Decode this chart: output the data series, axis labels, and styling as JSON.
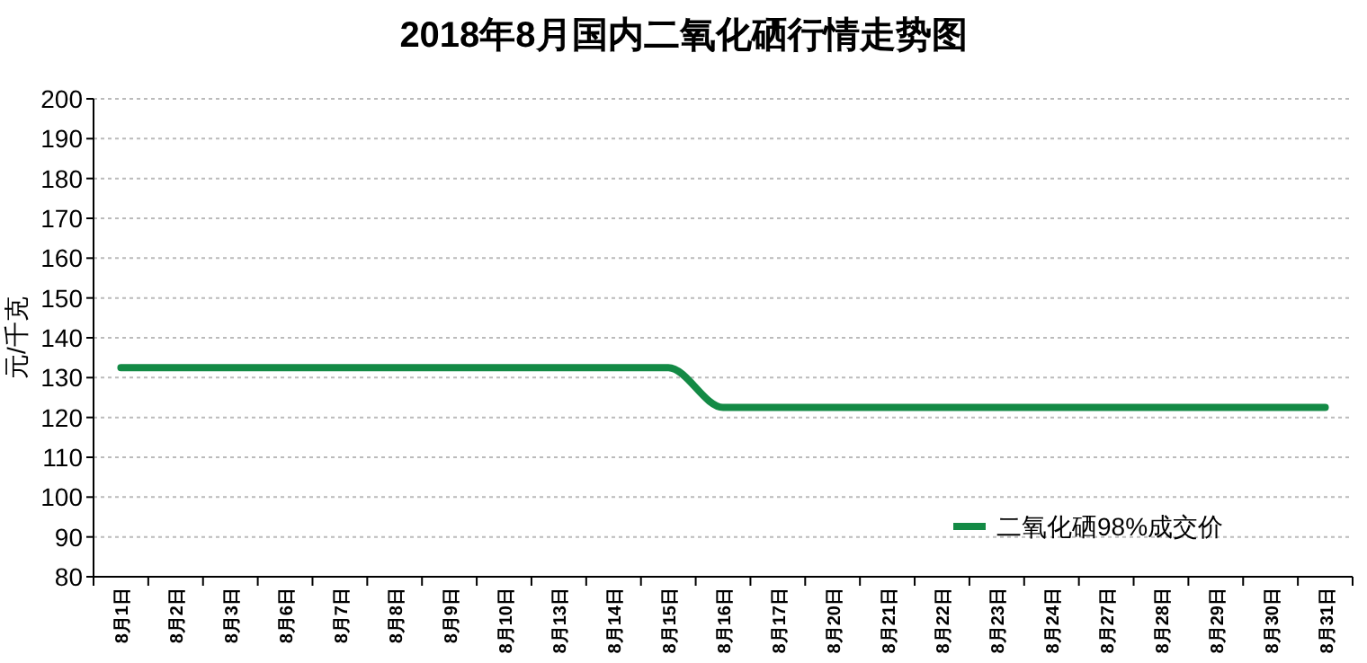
{
  "chart_data": {
    "type": "line",
    "title": "2018年8月国内二氧化硒行情走势图",
    "ylabel": "元/千克",
    "categories": [
      "8月1日",
      "8月2日",
      "8月3日",
      "8月6日",
      "8月7日",
      "8月8日",
      "8月9日",
      "8月10日",
      "8月13日",
      "8月14日",
      "8月15日",
      "8月16日",
      "8月17日",
      "8月20日",
      "8月21日",
      "8月22日",
      "8月23日",
      "8月24日",
      "8月27日",
      "8月28日",
      "8月29日",
      "8月30日",
      "8月31日"
    ],
    "series": [
      {
        "name": "二氧化硒98%成交价",
        "color": "#138a45",
        "values": [
          132.5,
          132.5,
          132.5,
          132.5,
          132.5,
          132.5,
          132.5,
          132.5,
          132.5,
          132.5,
          132.5,
          122.5,
          122.5,
          122.5,
          122.5,
          122.5,
          122.5,
          122.5,
          122.5,
          122.5,
          122.5,
          122.5,
          122.5
        ]
      }
    ],
    "ylim": [
      80,
      200
    ],
    "yticks": [
      80,
      90,
      100,
      110,
      120,
      130,
      140,
      150,
      160,
      170,
      180,
      190,
      200
    ],
    "grid": "y",
    "legend": "bottom right",
    "marker": "none",
    "line_style": "solid"
  }
}
